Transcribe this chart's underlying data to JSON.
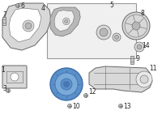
{
  "bg_color": "#ffffff",
  "line_color": "#666666",
  "part_fill": "#d8d8d8",
  "part_fill_dark": "#b8b8b8",
  "part_fill_light": "#e8e8e8",
  "inset_bg": "#f0f0f0",
  "inset_border": "#999999",
  "highlight_fill": "#5b8fc9",
  "highlight_edge": "#3a6ea8",
  "highlight_mid": "#7aaad8",
  "highlight_inner": "#4878b0",
  "label_color": "#222222",
  "label_fs": 5.5,
  "white": "#ffffff"
}
